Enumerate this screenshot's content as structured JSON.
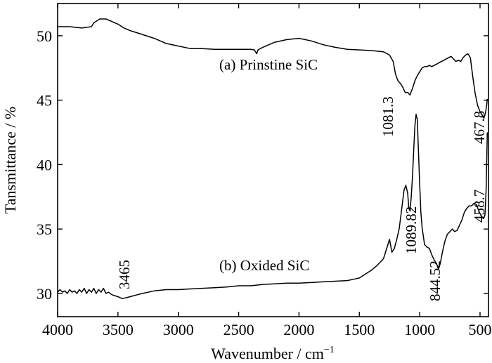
{
  "chart_data": {
    "type": "line",
    "xlabel": "Wavenumber / cm",
    "xlabel_sup": "−1",
    "ylabel": "Tansmittance / %",
    "xlim": [
      4000,
      430
    ],
    "ylim": [
      28.2,
      52.5
    ],
    "x_reversed": true,
    "grid": false,
    "x_ticks": [
      4000,
      3500,
      3000,
      2500,
      2000,
      1500,
      1000,
      500
    ],
    "y_ticks": [
      30,
      35,
      40,
      45,
      50
    ],
    "series": [
      {
        "name": "(a) Prinstine SiC",
        "points": [
          [
            4000,
            50.7
          ],
          [
            3900,
            50.7
          ],
          [
            3800,
            50.6
          ],
          [
            3720,
            50.7
          ],
          [
            3700,
            51.0
          ],
          [
            3650,
            51.3
          ],
          [
            3600,
            51.3
          ],
          [
            3550,
            51.1
          ],
          [
            3500,
            50.9
          ],
          [
            3450,
            50.6
          ],
          [
            3400,
            50.4
          ],
          [
            3300,
            50.1
          ],
          [
            3200,
            49.8
          ],
          [
            3100,
            49.4
          ],
          [
            3000,
            49.2
          ],
          [
            2900,
            49.0
          ],
          [
            2800,
            49.0
          ],
          [
            2700,
            48.95
          ],
          [
            2500,
            48.95
          ],
          [
            2400,
            48.95
          ],
          [
            2370,
            48.9
          ],
          [
            2350,
            48.6
          ],
          [
            2340,
            48.9
          ],
          [
            2300,
            49.1
          ],
          [
            2250,
            49.3
          ],
          [
            2200,
            49.5
          ],
          [
            2100,
            49.7
          ],
          [
            2000,
            49.8
          ],
          [
            1900,
            49.6
          ],
          [
            1800,
            49.3
          ],
          [
            1700,
            49.1
          ],
          [
            1600,
            48.95
          ],
          [
            1500,
            48.9
          ],
          [
            1400,
            48.85
          ],
          [
            1300,
            48.75
          ],
          [
            1250,
            48.5
          ],
          [
            1220,
            48.0
          ],
          [
            1200,
            47.0
          ],
          [
            1180,
            46.5
          ],
          [
            1160,
            46.3
          ],
          [
            1140,
            46.0
          ],
          [
            1120,
            45.6
          ],
          [
            1100,
            45.6
          ],
          [
            1081,
            45.4
          ],
          [
            1060,
            45.9
          ],
          [
            1040,
            46.5
          ],
          [
            1020,
            46.9
          ],
          [
            1000,
            47.2
          ],
          [
            980,
            47.5
          ],
          [
            960,
            47.6
          ],
          [
            940,
            47.6
          ],
          [
            920,
            47.7
          ],
          [
            900,
            47.6
          ],
          [
            880,
            47.7
          ],
          [
            860,
            47.8
          ],
          [
            840,
            47.9
          ],
          [
            820,
            48.0
          ],
          [
            800,
            48.1
          ],
          [
            780,
            48.2
          ],
          [
            760,
            48.3
          ],
          [
            740,
            48.4
          ],
          [
            720,
            48.2
          ],
          [
            700,
            48.0
          ],
          [
            680,
            48.1
          ],
          [
            660,
            48.0
          ],
          [
            640,
            48.3
          ],
          [
            620,
            48.5
          ],
          [
            600,
            48.6
          ],
          [
            580,
            48.3
          ],
          [
            560,
            46.8
          ],
          [
            540,
            45.5
          ],
          [
            520,
            44.6
          ],
          [
            500,
            44.1
          ],
          [
            480,
            43.8
          ],
          [
            468,
            43.6
          ],
          [
            455,
            44.0
          ],
          [
            445,
            44.6
          ],
          [
            440,
            45.1
          ]
        ]
      },
      {
        "name": "(b) Oxided SiC",
        "points": [
          [
            4000,
            30.1
          ],
          [
            3980,
            30.3
          ],
          [
            3960,
            30.1
          ],
          [
            3940,
            30.2
          ],
          [
            3920,
            30.0
          ],
          [
            3900,
            30.3
          ],
          [
            3880,
            30.1
          ],
          [
            3860,
            30.2
          ],
          [
            3840,
            30.0
          ],
          [
            3820,
            30.3
          ],
          [
            3800,
            30.1
          ],
          [
            3780,
            30.4
          ],
          [
            3760,
            30.0
          ],
          [
            3740,
            30.3
          ],
          [
            3720,
            30.1
          ],
          [
            3700,
            30.4
          ],
          [
            3680,
            30.0
          ],
          [
            3660,
            30.3
          ],
          [
            3640,
            30.1
          ],
          [
            3620,
            30.4
          ],
          [
            3600,
            30.0
          ],
          [
            3580,
            30.1
          ],
          [
            3550,
            29.9
          ],
          [
            3500,
            29.75
          ],
          [
            3465,
            29.6
          ],
          [
            3420,
            29.7
          ],
          [
            3380,
            29.8
          ],
          [
            3340,
            29.9
          ],
          [
            3300,
            30.0
          ],
          [
            3200,
            30.2
          ],
          [
            3100,
            30.3
          ],
          [
            3000,
            30.3
          ],
          [
            2900,
            30.35
          ],
          [
            2800,
            30.4
          ],
          [
            2700,
            30.45
          ],
          [
            2600,
            30.5
          ],
          [
            2500,
            30.6
          ],
          [
            2400,
            30.6
          ],
          [
            2300,
            30.7
          ],
          [
            2200,
            30.75
          ],
          [
            2100,
            30.8
          ],
          [
            2000,
            30.8
          ],
          [
            1900,
            30.85
          ],
          [
            1800,
            30.9
          ],
          [
            1700,
            30.95
          ],
          [
            1600,
            31.0
          ],
          [
            1550,
            31.1
          ],
          [
            1500,
            31.2
          ],
          [
            1450,
            31.5
          ],
          [
            1400,
            31.8
          ],
          [
            1350,
            32.2
          ],
          [
            1300,
            32.7
          ],
          [
            1270,
            33.6
          ],
          [
            1250,
            34.2
          ],
          [
            1230,
            33.2
          ],
          [
            1210,
            33.5
          ],
          [
            1190,
            34.2
          ],
          [
            1170,
            35.0
          ],
          [
            1150,
            36.5
          ],
          [
            1130,
            38.0
          ],
          [
            1115,
            38.4
          ],
          [
            1100,
            37.8
          ],
          [
            1090,
            36.6
          ],
          [
            1080,
            36.4
          ],
          [
            1070,
            37.5
          ],
          [
            1060,
            39.0
          ],
          [
            1050,
            41.0
          ],
          [
            1040,
            43.0
          ],
          [
            1030,
            43.9
          ],
          [
            1020,
            43.5
          ],
          [
            1010,
            41.0
          ],
          [
            1000,
            38.5
          ],
          [
            990,
            36.3
          ],
          [
            980,
            35.1
          ],
          [
            960,
            33.8
          ],
          [
            940,
            33.6
          ],
          [
            920,
            33.5
          ],
          [
            900,
            33.0
          ],
          [
            880,
            32.6
          ],
          [
            860,
            32.3
          ],
          [
            845,
            31.9
          ],
          [
            830,
            32.3
          ],
          [
            810,
            33.3
          ],
          [
            790,
            34.1
          ],
          [
            770,
            34.6
          ],
          [
            750,
            34.8
          ],
          [
            730,
            35.0
          ],
          [
            710,
            34.8
          ],
          [
            690,
            34.9
          ],
          [
            670,
            35.3
          ],
          [
            650,
            35.7
          ],
          [
            630,
            36.3
          ],
          [
            610,
            36.6
          ],
          [
            590,
            36.8
          ],
          [
            570,
            36.8
          ],
          [
            550,
            37.0
          ],
          [
            530,
            36.9
          ],
          [
            510,
            36.4
          ],
          [
            490,
            36.0
          ],
          [
            470,
            35.8
          ],
          [
            459,
            36.1
          ],
          [
            450,
            38.0
          ],
          [
            445,
            40.0
          ],
          [
            440,
            42.5
          ]
        ]
      }
    ],
    "annotations": [
      "1081.3",
      "467.8",
      "3465",
      "1089.82",
      "844.52",
      "458.7"
    ]
  }
}
